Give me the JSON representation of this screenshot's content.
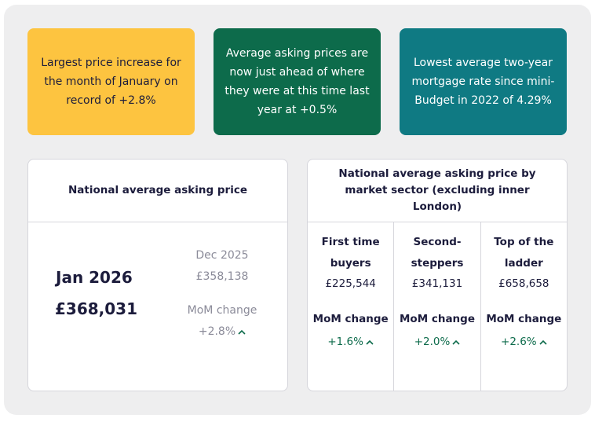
{
  "stats": [
    {
      "text": "Largest price increase for the month of January on record of +2.8%"
    },
    {
      "text": "Average asking prices are now just ahead of where they were at this time last year at +0.5%"
    },
    {
      "text": "Lowest average two-year mortgage rate since mini-Budget in 2022 of 4.29%"
    }
  ],
  "national": {
    "title": "National average asking price",
    "month": "Jan 2026",
    "price": "£368,031",
    "prev_month": "Dec 2025",
    "prev_price": "£358,138",
    "mom_label": "MoM change",
    "mom_value": "+2.8%"
  },
  "sectors": {
    "title": "National average asking price by market sector (excluding inner London)",
    "items": [
      {
        "name": "First time buyers",
        "price": "£225,544",
        "mom_label": "MoM change",
        "mom_value": "+1.6%"
      },
      {
        "name": "Second-steppers",
        "price": "£341,131",
        "mom_label": "MoM change",
        "mom_value": "+2.0%"
      },
      {
        "name": "Top of the ladder",
        "price": "£658,658",
        "mom_label": "MoM change",
        "mom_value": "+2.6%"
      }
    ]
  },
  "colors": {
    "yellow": "#fdc440",
    "green": "#0d6b4b",
    "teal": "#0f7a83",
    "navy": "#1c1c3c"
  },
  "icons": {
    "up": "chevron-up-icon"
  }
}
